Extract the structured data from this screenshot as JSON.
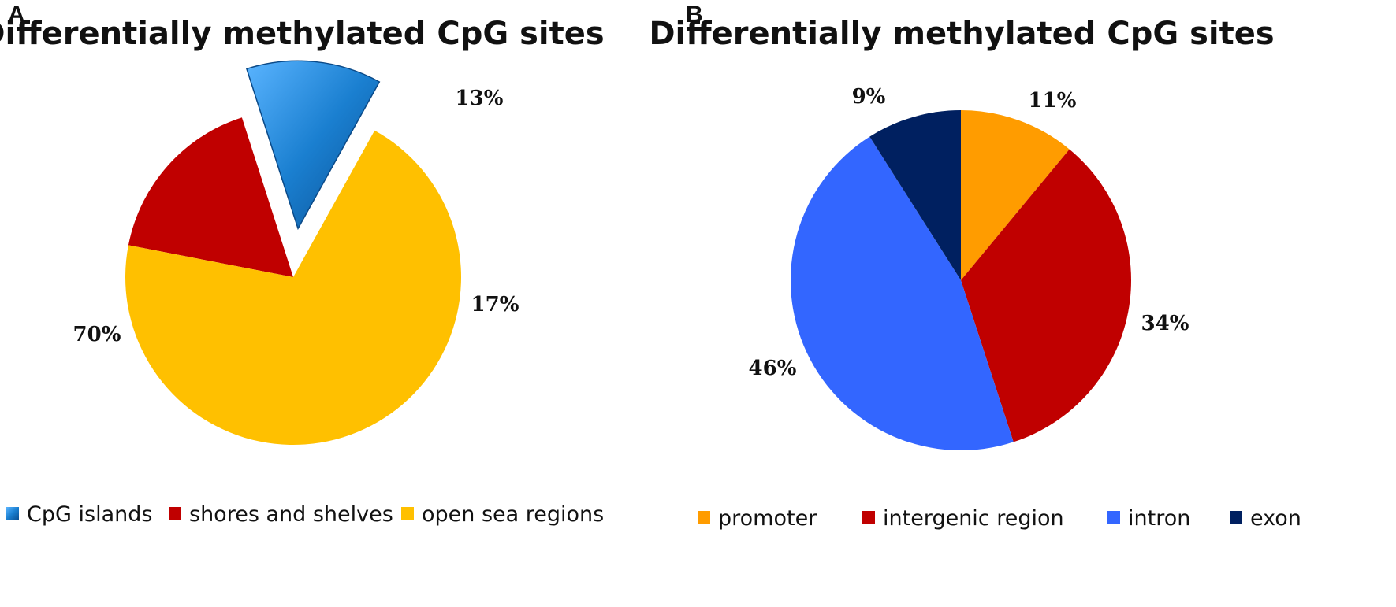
{
  "chart_data": [
    {
      "type": "pie",
      "panel": "A",
      "title": "Differentially methylated CpG sites",
      "slices": [
        {
          "name": "CpG islands",
          "value": 13,
          "label": "13%",
          "color": "#1a7fd0",
          "exploded": true
        },
        {
          "name": "shores and shelves",
          "value": 17,
          "label": "17%",
          "color": "#c00000"
        },
        {
          "name": "open sea regions",
          "value": 70,
          "label": "70%",
          "color": "#ffc000"
        }
      ],
      "legend_position": "bottom"
    },
    {
      "type": "pie",
      "panel": "B",
      "title": "Differentially methylated CpG sites",
      "slices": [
        {
          "name": "promoter",
          "value": 11,
          "label": "11%",
          "color": "#ff9c00"
        },
        {
          "name": "intergenic region",
          "value": 34,
          "label": "34%",
          "color": "#c00000"
        },
        {
          "name": "intron",
          "value": 46,
          "label": "46%",
          "color": "#3366ff"
        },
        {
          "name": "exon",
          "value": 9,
          "label": "9%",
          "color": "#002060"
        }
      ],
      "legend_position": "bottom"
    }
  ]
}
